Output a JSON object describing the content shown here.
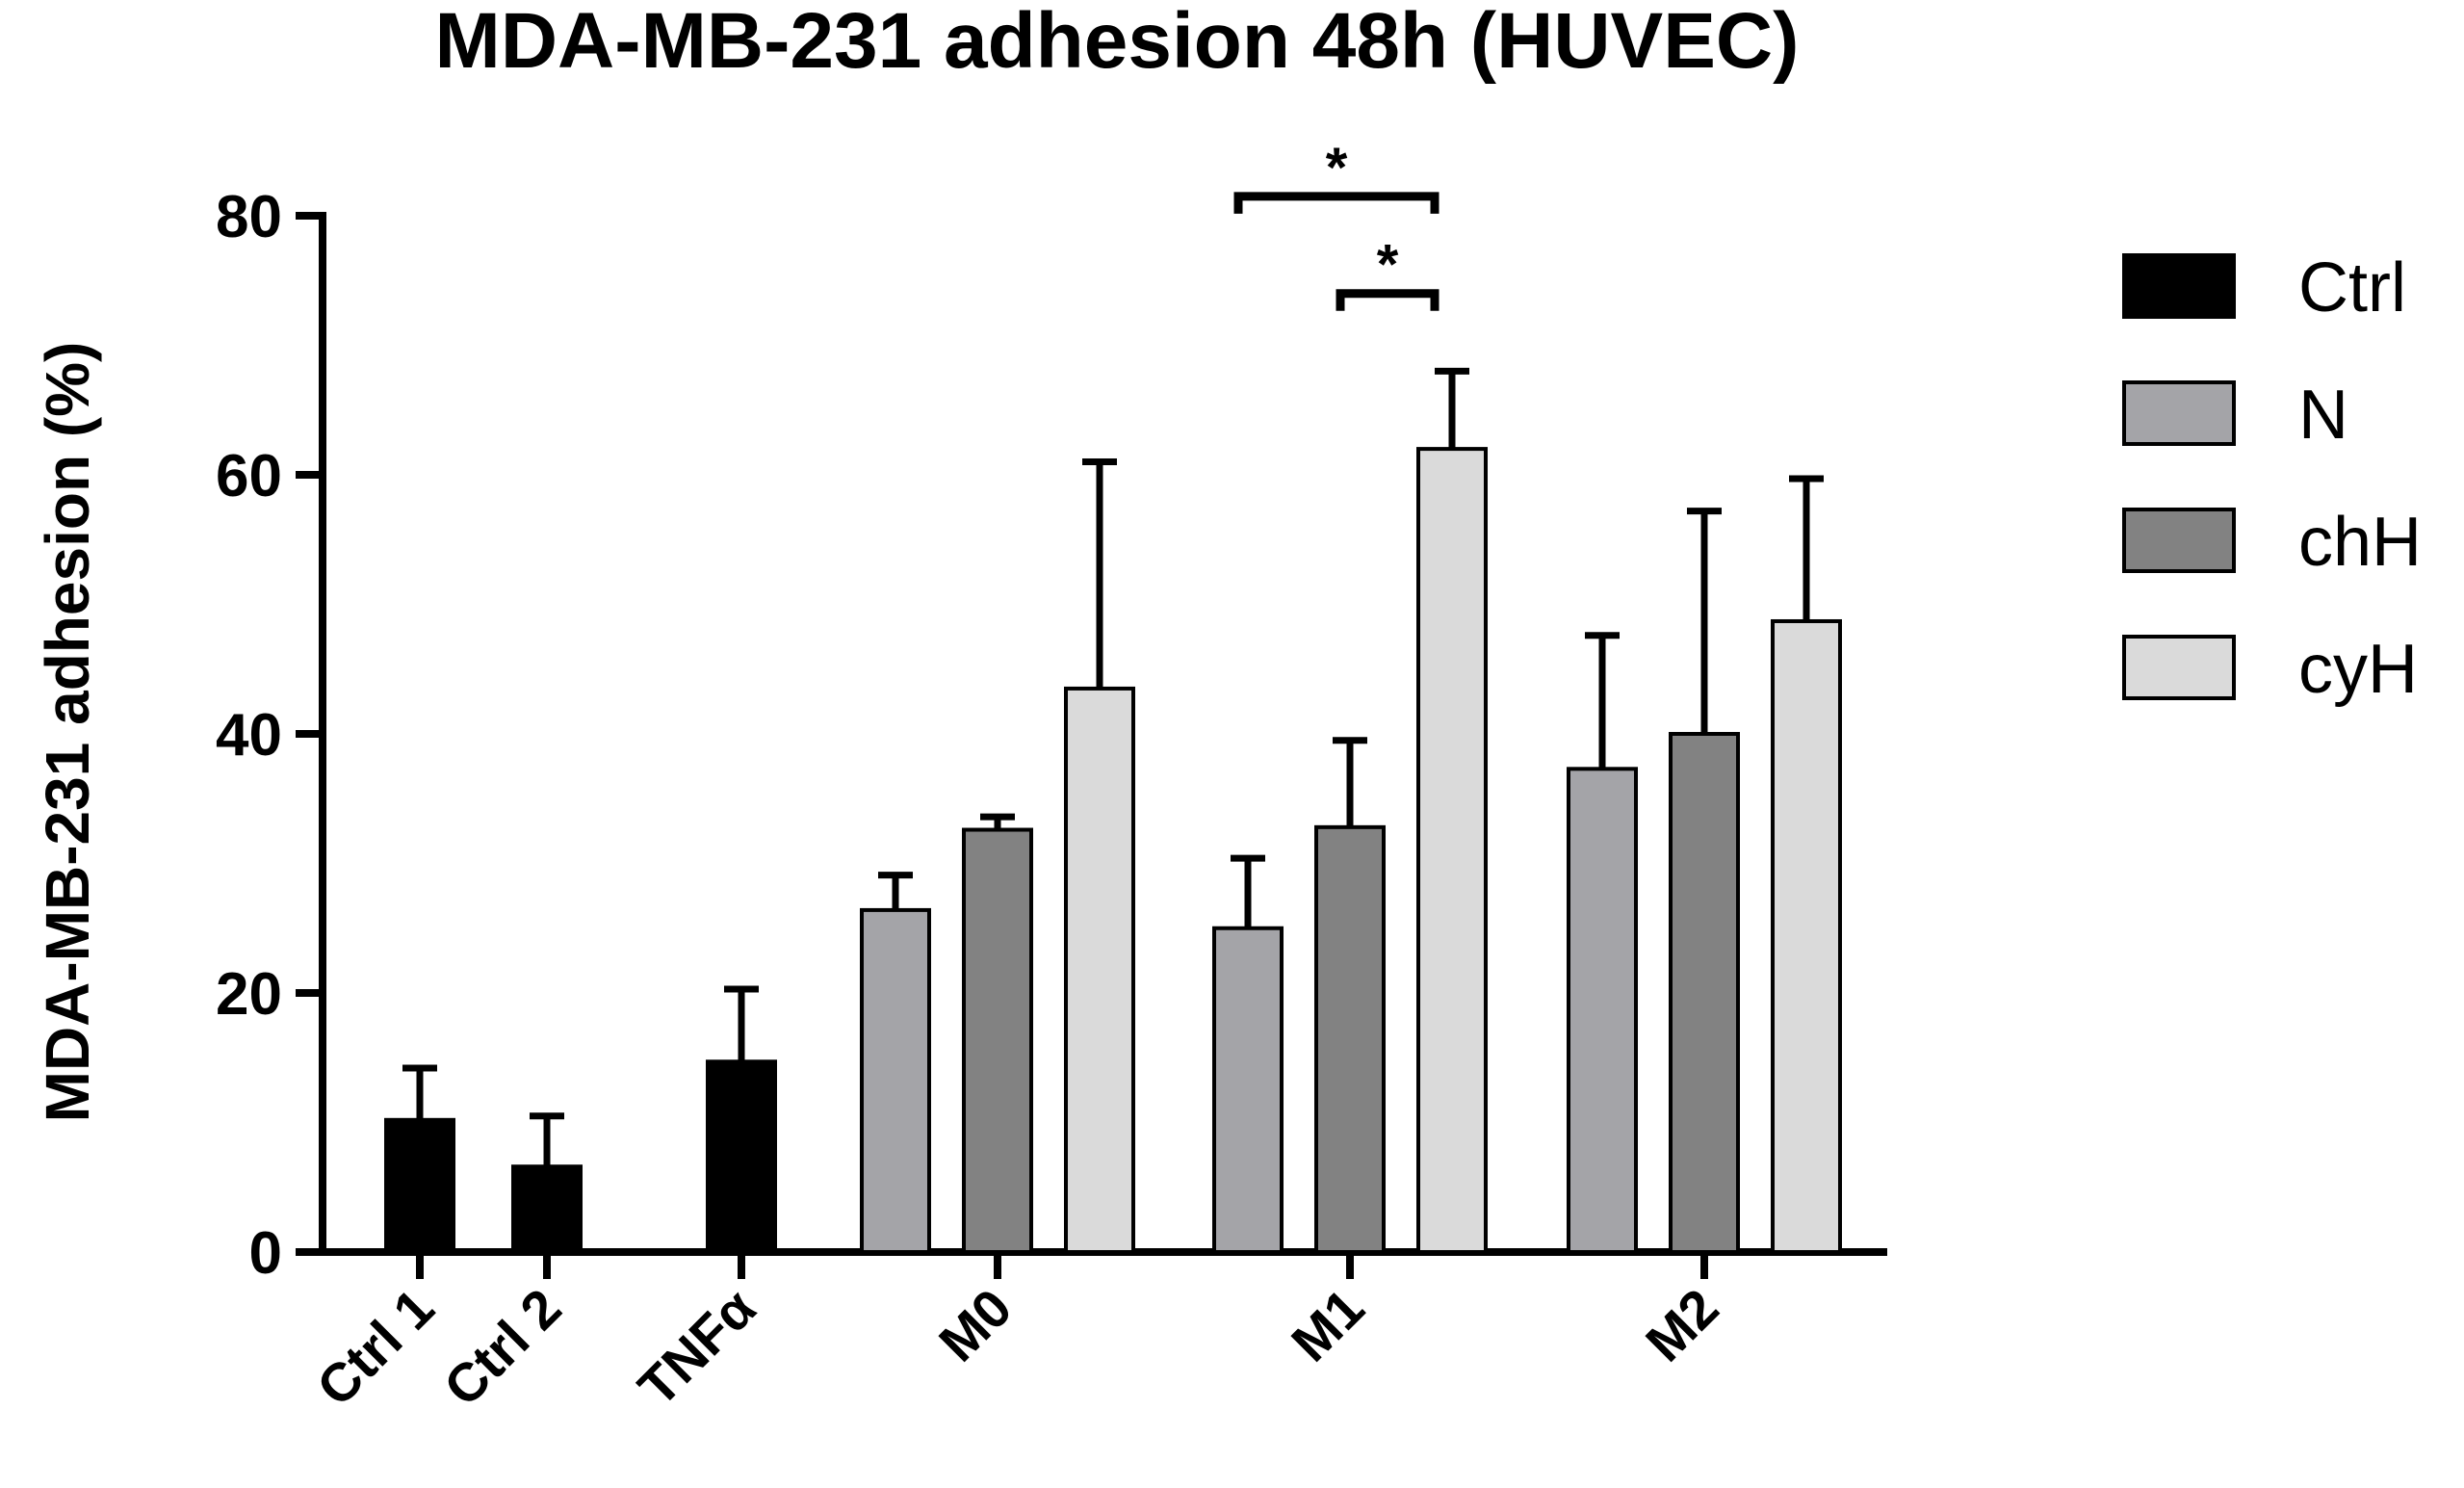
{
  "chart_data": {
    "type": "bar",
    "title": "MDA-MB-231 adhesion 48h (HUVEC)",
    "ylabel": "MDA-MB-231 adhesion (%)",
    "xlabel": "",
    "ylim": [
      0,
      80
    ],
    "yticks": [
      0,
      20,
      40,
      60,
      80
    ],
    "legend_position": "right",
    "legend": [
      {
        "name": "Ctrl",
        "color": "#000000"
      },
      {
        "name": "N",
        "color": "#a4a4a8"
      },
      {
        "name": "chH",
        "color": "#828282"
      },
      {
        "name": "cyH",
        "color": "#dadada"
      }
    ],
    "groups": [
      {
        "label": "Ctrl 1",
        "bars": [
          {
            "series": "Ctrl",
            "value": 10.2,
            "error": 4.0
          }
        ]
      },
      {
        "label": "Ctrl 2",
        "bars": [
          {
            "series": "Ctrl",
            "value": 6.6,
            "error": 3.9
          }
        ]
      },
      {
        "label": "TNFα",
        "bars": [
          {
            "series": "Ctrl",
            "value": 14.7,
            "error": 5.6
          }
        ]
      },
      {
        "label": "M0",
        "bars": [
          {
            "series": "N",
            "value": 26.4,
            "error": 2.7
          },
          {
            "series": "chH",
            "value": 32.6,
            "error": 1.0
          },
          {
            "series": "cyH",
            "value": 43.5,
            "error": 17.5
          }
        ]
      },
      {
        "label": "M1",
        "bars": [
          {
            "series": "N",
            "value": 25.0,
            "error": 5.4
          },
          {
            "series": "chH",
            "value": 32.8,
            "error": 6.7
          },
          {
            "series": "cyH",
            "value": 62.0,
            "error": 6.0
          }
        ]
      },
      {
        "label": "M2",
        "bars": [
          {
            "series": "N",
            "value": 37.3,
            "error": 10.3
          },
          {
            "series": "chH",
            "value": 40.0,
            "error": 17.2
          },
          {
            "series": "cyH",
            "value": 48.7,
            "error": 11.0
          }
        ]
      }
    ],
    "significance": [
      {
        "group": "M1",
        "from": "N",
        "to": "cyH",
        "label": "*"
      },
      {
        "group": "M1",
        "from": "chH",
        "to": "cyH",
        "label": "*"
      }
    ]
  }
}
